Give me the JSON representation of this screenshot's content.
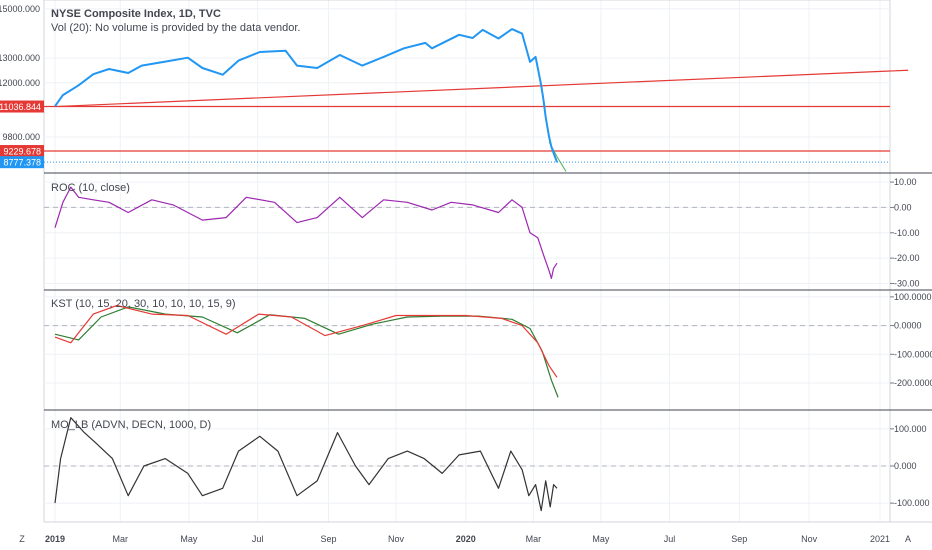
{
  "colors": {
    "price": "#2196f3",
    "hline": "#e53935",
    "green": "#4caf50",
    "roc": "#9c27b0",
    "kst": "#e53935",
    "kst_signal": "#2e7d32",
    "mo": "#333333",
    "grid": "#eef1f5",
    "axis_text": "#434651",
    "dashed": "#b2b5be"
  },
  "header": {
    "title": "NYSE Composite Index, 1D, TVC",
    "volume_note": "Vol (20): No volume is provided by the data vendor."
  },
  "corner_labels": {
    "left": "Z",
    "right": "A"
  },
  "x_axis": {
    "labels": [
      "2019",
      "Mar",
      "May",
      "Jul",
      "Sep",
      "Nov",
      "2020",
      "Mar",
      "May",
      "Jul",
      "Sep",
      "Nov",
      "2021"
    ],
    "bold": [
      "2019",
      "2020"
    ]
  },
  "chart_data": [
    {
      "type": "line",
      "name": "price",
      "y_ticks": [
        "15000.000",
        "13000.000",
        "12000.000",
        "9800.000"
      ],
      "price_tags": [
        {
          "label": "11036.844",
          "value": 11036.844,
          "color": "#e53935"
        },
        {
          "label": "9229.678",
          "value": 9229.678,
          "color": "#e53935"
        },
        {
          "label": "8777.378",
          "value": 8777.378,
          "color": "#2196f3"
        }
      ],
      "trendline": {
        "start": [
          "2019-01-02",
          11036
        ],
        "end": [
          "2021-01-29",
          12510
        ]
      },
      "horizontal_lines": [
        11036.844,
        9229.678
      ],
      "dotted_line": 8777.378,
      "y_range": [
        8500,
        15200
      ],
      "series": [
        {
          "date": "2019-01-02",
          "value": 11050
        },
        {
          "date": "2019-01-09",
          "value": 11500
        },
        {
          "date": "2019-01-23",
          "value": 11900
        },
        {
          "date": "2019-02-05",
          "value": 12350
        },
        {
          "date": "2019-02-19",
          "value": 12560
        },
        {
          "date": "2019-03-08",
          "value": 12400
        },
        {
          "date": "2019-03-20",
          "value": 12700
        },
        {
          "date": "2019-04-10",
          "value": 12860
        },
        {
          "date": "2019-04-30",
          "value": 13020
        },
        {
          "date": "2019-05-13",
          "value": 12600
        },
        {
          "date": "2019-05-31",
          "value": 12330
        },
        {
          "date": "2019-06-14",
          "value": 12900
        },
        {
          "date": "2019-07-03",
          "value": 13250
        },
        {
          "date": "2019-07-26",
          "value": 13300
        },
        {
          "date": "2019-08-05",
          "value": 12700
        },
        {
          "date": "2019-08-23",
          "value": 12600
        },
        {
          "date": "2019-09-12",
          "value": 13130
        },
        {
          "date": "2019-10-02",
          "value": 12700
        },
        {
          "date": "2019-10-21",
          "value": 13050
        },
        {
          "date": "2019-11-08",
          "value": 13400
        },
        {
          "date": "2019-11-27",
          "value": 13620
        },
        {
          "date": "2019-12-03",
          "value": 13400
        },
        {
          "date": "2019-12-27",
          "value": 13950
        },
        {
          "date": "2020-01-08",
          "value": 13820
        },
        {
          "date": "2020-01-17",
          "value": 14150
        },
        {
          "date": "2020-01-31",
          "value": 13800
        },
        {
          "date": "2020-02-12",
          "value": 14180
        },
        {
          "date": "2020-02-21",
          "value": 14000
        },
        {
          "date": "2020-02-28",
          "value": 12850
        },
        {
          "date": "2020-03-04",
          "value": 13050
        },
        {
          "date": "2020-03-09",
          "value": 11900
        },
        {
          "date": "2020-03-11",
          "value": 11300
        },
        {
          "date": "2020-03-13",
          "value": 10600
        },
        {
          "date": "2020-03-16",
          "value": 9800
        },
        {
          "date": "2020-03-18",
          "value": 9400
        },
        {
          "date": "2020-03-20",
          "value": 9150
        },
        {
          "date": "2020-03-23",
          "value": 8777
        }
      ],
      "projection": [
        {
          "date": "2020-03-16",
          "value": 9600
        },
        {
          "date": "2020-03-23",
          "value": 9000
        },
        {
          "date": "2020-03-31",
          "value": 8400
        }
      ]
    },
    {
      "type": "line",
      "name": "ROC (10, close)",
      "y_ticks": [
        10,
        0,
        -10,
        -20,
        -30
      ],
      "y_tick_labels": [
        "10.00",
        "0.00",
        "-10.00",
        "-20.00",
        "-30.00"
      ],
      "y_range": [
        -31,
        12
      ],
      "zero_line": 0,
      "series": [
        {
          "date": "2019-01-02",
          "value": -8
        },
        {
          "date": "2019-01-09",
          "value": 2
        },
        {
          "date": "2019-01-16",
          "value": 8
        },
        {
          "date": "2019-01-23",
          "value": 4
        },
        {
          "date": "2019-02-05",
          "value": 3
        },
        {
          "date": "2019-02-19",
          "value": 2
        },
        {
          "date": "2019-03-08",
          "value": -2
        },
        {
          "date": "2019-03-29",
          "value": 3
        },
        {
          "date": "2019-04-17",
          "value": 1
        },
        {
          "date": "2019-05-13",
          "value": -5
        },
        {
          "date": "2019-06-03",
          "value": -4
        },
        {
          "date": "2019-06-21",
          "value": 4
        },
        {
          "date": "2019-07-16",
          "value": 2
        },
        {
          "date": "2019-08-05",
          "value": -6
        },
        {
          "date": "2019-08-23",
          "value": -4
        },
        {
          "date": "2019-09-12",
          "value": 4
        },
        {
          "date": "2019-10-02",
          "value": -4
        },
        {
          "date": "2019-10-21",
          "value": 3
        },
        {
          "date": "2019-11-11",
          "value": 2
        },
        {
          "date": "2019-12-03",
          "value": -1
        },
        {
          "date": "2019-12-20",
          "value": 2
        },
        {
          "date": "2020-01-08",
          "value": 1
        },
        {
          "date": "2020-01-31",
          "value": -2
        },
        {
          "date": "2020-02-12",
          "value": 3
        },
        {
          "date": "2020-02-21",
          "value": 0
        },
        {
          "date": "2020-02-28",
          "value": -10
        },
        {
          "date": "2020-03-06",
          "value": -12
        },
        {
          "date": "2020-03-12",
          "value": -20
        },
        {
          "date": "2020-03-16",
          "value": -25
        },
        {
          "date": "2020-03-18",
          "value": -28
        },
        {
          "date": "2020-03-20",
          "value": -24
        },
        {
          "date": "2020-03-23",
          "value": -22
        }
      ]
    },
    {
      "type": "line",
      "name": "KST (10, 15, 20, 30, 10, 10, 10, 15, 9)",
      "y_ticks": [
        100,
        0,
        -100,
        -200
      ],
      "y_tick_labels": [
        "100.0000",
        "0.0000",
        "-100.0000",
        "-200.0000"
      ],
      "y_range": [
        -280,
        110
      ],
      "zero_line": 0,
      "series": [
        {
          "name": "KST",
          "points": [
            {
              "date": "2019-01-02",
              "value": -40
            },
            {
              "date": "2019-01-16",
              "value": -60
            },
            {
              "date": "2019-02-05",
              "value": 40
            },
            {
              "date": "2019-02-26",
              "value": 70
            },
            {
              "date": "2019-03-29",
              "value": 40
            },
            {
              "date": "2019-04-30",
              "value": 35
            },
            {
              "date": "2019-06-03",
              "value": -30
            },
            {
              "date": "2019-07-02",
              "value": 40
            },
            {
              "date": "2019-07-31",
              "value": 30
            },
            {
              "date": "2019-08-30",
              "value": -35
            },
            {
              "date": "2019-10-02",
              "value": 0
            },
            {
              "date": "2019-11-01",
              "value": 35
            },
            {
              "date": "2019-12-02",
              "value": 35
            },
            {
              "date": "2020-01-02",
              "value": 35
            },
            {
              "date": "2020-02-03",
              "value": 25
            },
            {
              "date": "2020-02-21",
              "value": 0
            },
            {
              "date": "2020-03-06",
              "value": -60
            },
            {
              "date": "2020-03-16",
              "value": -140
            },
            {
              "date": "2020-03-23",
              "value": -180
            }
          ]
        },
        {
          "name": "Signal",
          "points": [
            {
              "date": "2019-01-02",
              "value": -30
            },
            {
              "date": "2019-01-23",
              "value": -50
            },
            {
              "date": "2019-02-12",
              "value": 30
            },
            {
              "date": "2019-03-08",
              "value": 65
            },
            {
              "date": "2019-04-10",
              "value": 40
            },
            {
              "date": "2019-05-13",
              "value": 30
            },
            {
              "date": "2019-06-13",
              "value": -25
            },
            {
              "date": "2019-07-12",
              "value": 38
            },
            {
              "date": "2019-08-12",
              "value": 25
            },
            {
              "date": "2019-09-11",
              "value": -30
            },
            {
              "date": "2019-10-11",
              "value": 5
            },
            {
              "date": "2019-11-11",
              "value": 30
            },
            {
              "date": "2019-12-12",
              "value": 33
            },
            {
              "date": "2020-01-13",
              "value": 33
            },
            {
              "date": "2020-02-12",
              "value": 22
            },
            {
              "date": "2020-02-28",
              "value": -10
            },
            {
              "date": "2020-03-10",
              "value": -90
            },
            {
              "date": "2020-03-18",
              "value": -190
            },
            {
              "date": "2020-03-24",
              "value": -250
            }
          ]
        }
      ]
    },
    {
      "type": "line",
      "name": "MO_LB (ADVN, DECN, 1000, D)",
      "y_ticks": [
        100,
        0,
        -100
      ],
      "y_tick_labels": [
        "100.000",
        "0.000",
        "-100.000"
      ],
      "y_range": [
        -140,
        140
      ],
      "zero_line": 0,
      "series": [
        {
          "date": "2019-01-02",
          "value": -100
        },
        {
          "date": "2019-01-07",
          "value": 20
        },
        {
          "date": "2019-01-16",
          "value": 130
        },
        {
          "date": "2019-01-28",
          "value": 90
        },
        {
          "date": "2019-02-08",
          "value": 60
        },
        {
          "date": "2019-02-22",
          "value": 20
        },
        {
          "date": "2019-03-08",
          "value": -80
        },
        {
          "date": "2019-03-22",
          "value": 0
        },
        {
          "date": "2019-04-10",
          "value": 20
        },
        {
          "date": "2019-04-30",
          "value": -20
        },
        {
          "date": "2019-05-13",
          "value": -80
        },
        {
          "date": "2019-05-31",
          "value": -60
        },
        {
          "date": "2019-06-14",
          "value": 40
        },
        {
          "date": "2019-07-03",
          "value": 80
        },
        {
          "date": "2019-07-19",
          "value": 40
        },
        {
          "date": "2019-08-05",
          "value": -80
        },
        {
          "date": "2019-08-23",
          "value": -40
        },
        {
          "date": "2019-09-10",
          "value": 90
        },
        {
          "date": "2019-09-26",
          "value": 0
        },
        {
          "date": "2019-10-08",
          "value": -50
        },
        {
          "date": "2019-10-25",
          "value": 20
        },
        {
          "date": "2019-11-11",
          "value": 40
        },
        {
          "date": "2019-11-26",
          "value": 20
        },
        {
          "date": "2019-12-12",
          "value": -20
        },
        {
          "date": "2019-12-27",
          "value": 30
        },
        {
          "date": "2020-01-15",
          "value": 40
        },
        {
          "date": "2020-01-31",
          "value": -60
        },
        {
          "date": "2020-02-11",
          "value": 40
        },
        {
          "date": "2020-02-21",
          "value": -10
        },
        {
          "date": "2020-02-27",
          "value": -80
        },
        {
          "date": "2020-03-04",
          "value": -50
        },
        {
          "date": "2020-03-09",
          "value": -120
        },
        {
          "date": "2020-03-13",
          "value": -40
        },
        {
          "date": "2020-03-17",
          "value": -110
        },
        {
          "date": "2020-03-20",
          "value": -50
        },
        {
          "date": "2020-03-23",
          "value": -60
        }
      ]
    }
  ]
}
